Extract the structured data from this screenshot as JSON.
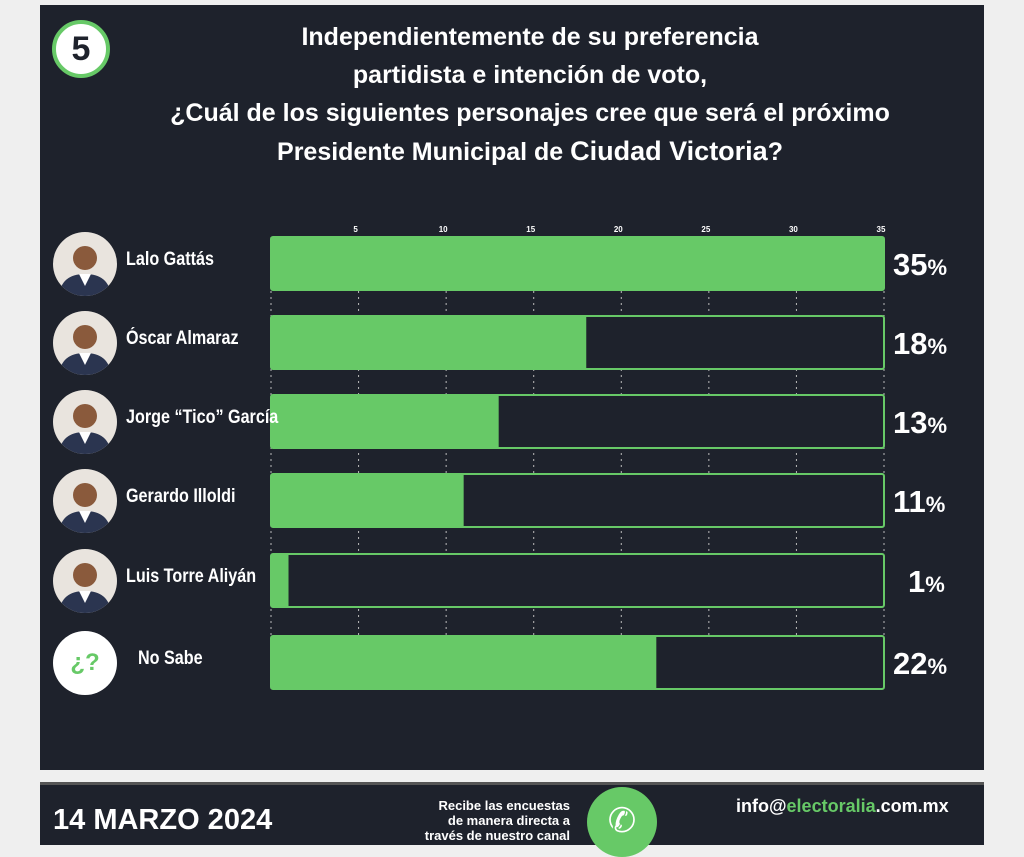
{
  "question_number": "5",
  "title_lines": [
    "Independientemente de su preferencia",
    "partidista e intención de voto,",
    "¿Cuál de los siguientes personajes cree que será el próximo",
    "Presidente Municipal de "
  ],
  "title_highlight": "Ciudad Victoria",
  "title_end": "?",
  "chart_data": {
    "type": "bar",
    "orientation": "horizontal",
    "categories": [
      "Lalo Gattás",
      "Óscar Almaraz",
      "Jorge “Tico” García",
      "Gerardo Illoldi",
      "Luis Torre Aliyán",
      "No Sabe"
    ],
    "values": [
      35,
      18,
      13,
      11,
      1,
      22
    ],
    "value_labels": [
      "35",
      "18",
      "13",
      "11",
      "1",
      "22"
    ],
    "unit": "%",
    "xticks": [
      "5",
      "10",
      "15",
      "20",
      "25",
      "30",
      "35"
    ],
    "xlim": [
      0,
      35
    ],
    "grid": true,
    "colors": {
      "bar": "#67c967",
      "background": "#1e222c"
    }
  },
  "no_sabe_icon": "¿?",
  "footer": {
    "date": "14 MARZO 2024",
    "cta": [
      "Recibe las encuestas",
      "de manera directa a",
      "través de nuestro canal"
    ],
    "email_pre": "info@",
    "email_brand": "electoralia",
    "email_post": ".com.mx"
  }
}
